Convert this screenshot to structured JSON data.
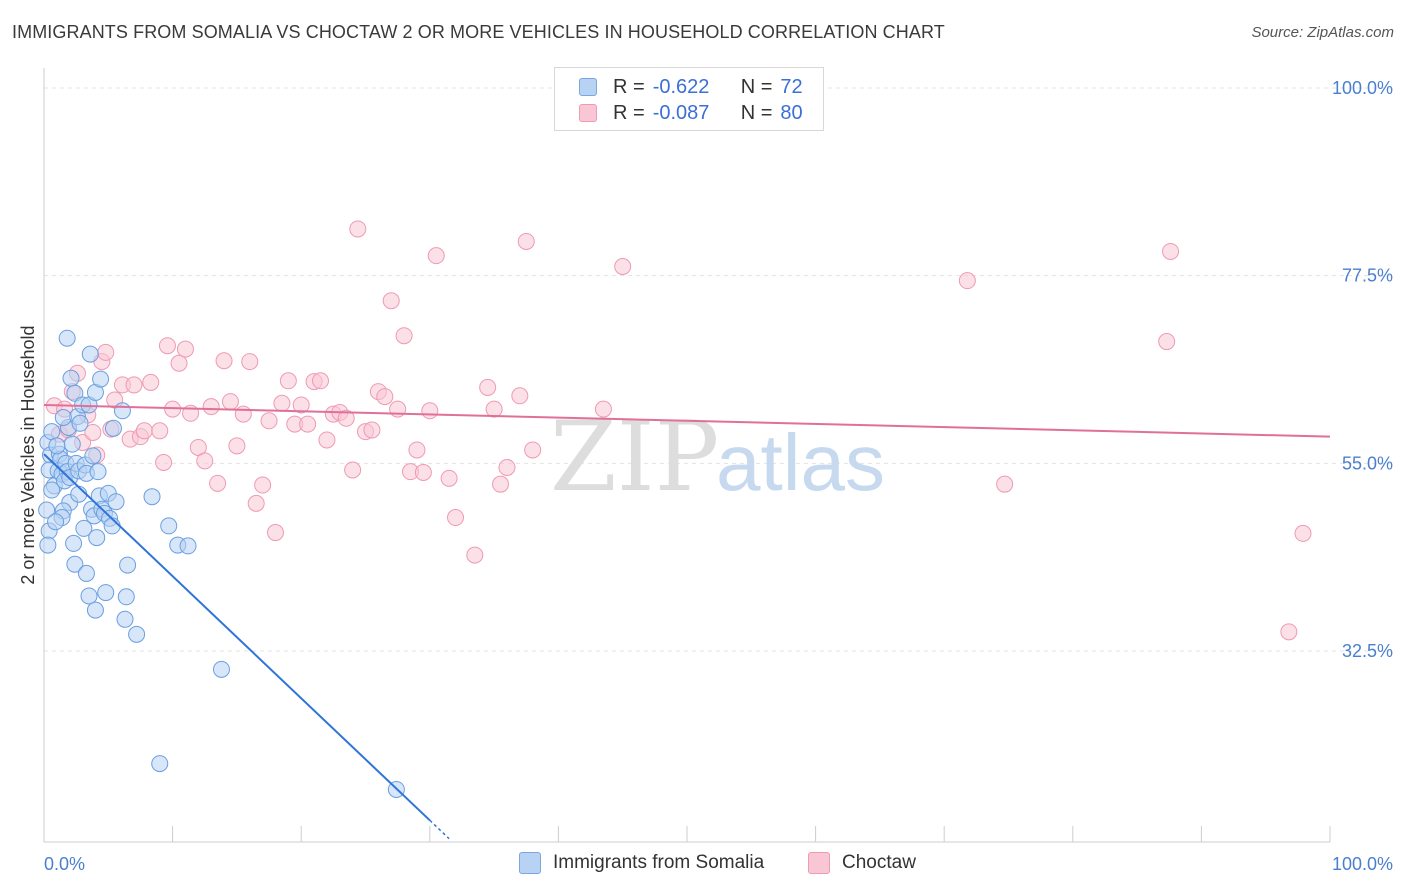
{
  "title": "IMMIGRANTS FROM SOMALIA VS CHOCTAW 2 OR MORE VEHICLES IN HOUSEHOLD CORRELATION CHART",
  "source": "Source: ZipAtlas.com",
  "watermark": {
    "zip": "ZIP",
    "atlas": "atlas"
  },
  "legend": {
    "rows": [
      {
        "r_label": "R =",
        "r_value": "-0.622",
        "n_label": "N =",
        "n_value": "72"
      },
      {
        "r_label": "R =",
        "r_value": "-0.087",
        "n_label": "N =",
        "n_value": "80"
      }
    ]
  },
  "bottom_legend": [
    "Immigrants from Somalia",
    "Choctaw"
  ],
  "colors": {
    "blue_fill": "#b7d2f3",
    "blue_stroke": "#6a9fe0",
    "blue_line": "#2f74d8",
    "pink_fill": "#f9c6d5",
    "pink_stroke": "#ee9ab3",
    "pink_line": "#e0709a",
    "tick_text": "#4a7fcf",
    "grid": "#e3e3e3"
  },
  "chart_data": {
    "type": "scatter",
    "title": "IMMIGRANTS FROM SOMALIA VS CHOCTAW 2 OR MORE VEHICLES IN HOUSEHOLD CORRELATION CHART",
    "xlabel": "",
    "ylabel": "2 or more Vehicles in Household",
    "xlim": [
      0,
      100
    ],
    "ylim": [
      10,
      100
    ],
    "x_tick_labels": [
      "0.0%",
      "100.0%"
    ],
    "y_ticks": [
      32.5,
      55.0,
      77.5,
      100.0
    ],
    "y_tick_labels": [
      "32.5%",
      "55.0%",
      "77.5%",
      "100.0%"
    ],
    "grid": true,
    "series": [
      {
        "name": "Immigrants from Somalia",
        "color": "blue",
        "R": -0.622,
        "N": 72,
        "trend": {
          "x0": 0,
          "y0": 56.1,
          "x1": 30,
          "y1": 12.2,
          "dashed_to_x": 31.5,
          "dashed_to_y": 10.0
        },
        "points": [
          [
            0.3,
            57.5
          ],
          [
            0.5,
            56.0
          ],
          [
            0.4,
            54.2
          ],
          [
            0.8,
            52.3
          ],
          [
            0.6,
            51.8
          ],
          [
            0.2,
            49.4
          ],
          [
            0.4,
            46.9
          ],
          [
            0.3,
            45.2
          ],
          [
            1.2,
            56.1
          ],
          [
            1.3,
            55.5
          ],
          [
            1.1,
            54.1
          ],
          [
            1.4,
            53.7
          ],
          [
            1.7,
            55.0
          ],
          [
            1.8,
            54.0
          ],
          [
            1.6,
            52.9
          ],
          [
            2.0,
            53.3
          ],
          [
            2.5,
            55.0
          ],
          [
            2.7,
            54.1
          ],
          [
            2.0,
            50.3
          ],
          [
            1.5,
            49.3
          ],
          [
            1.4,
            48.5
          ],
          [
            2.3,
            45.4
          ],
          [
            2.4,
            42.9
          ],
          [
            2.7,
            51.3
          ],
          [
            3.2,
            54.8
          ],
          [
            3.3,
            53.8
          ],
          [
            3.1,
            47.2
          ],
          [
            3.3,
            41.8
          ],
          [
            3.5,
            39.1
          ],
          [
            3.8,
            55.9
          ],
          [
            3.7,
            49.5
          ],
          [
            3.9,
            48.7
          ],
          [
            4.0,
            37.4
          ],
          [
            4.2,
            54.0
          ],
          [
            4.3,
            51.1
          ],
          [
            4.5,
            49.5
          ],
          [
            4.1,
            46.1
          ],
          [
            4.7,
            49.0
          ],
          [
            4.8,
            39.5
          ],
          [
            5.0,
            51.4
          ],
          [
            5.1,
            48.4
          ],
          [
            5.3,
            47.5
          ],
          [
            5.6,
            50.4
          ],
          [
            5.4,
            59.2
          ],
          [
            6.1,
            61.3
          ],
          [
            6.4,
            39.0
          ],
          [
            6.3,
            36.3
          ],
          [
            6.5,
            42.8
          ],
          [
            2.1,
            65.2
          ],
          [
            2.4,
            63.4
          ],
          [
            1.9,
            59.3
          ],
          [
            2.2,
            57.3
          ],
          [
            2.6,
            60.6
          ],
          [
            3.0,
            62.0
          ],
          [
            2.8,
            59.8
          ],
          [
            3.5,
            62.0
          ],
          [
            1.8,
            70.0
          ],
          [
            3.6,
            68.1
          ],
          [
            4.0,
            63.5
          ],
          [
            4.4,
            65.1
          ],
          [
            8.4,
            51.0
          ],
          [
            9.7,
            47.5
          ],
          [
            10.4,
            45.2
          ],
          [
            11.2,
            45.1
          ],
          [
            7.2,
            34.5
          ],
          [
            13.8,
            30.3
          ],
          [
            9.0,
            19.0
          ],
          [
            27.4,
            15.9
          ],
          [
            0.6,
            58.8
          ],
          [
            1.0,
            57.1
          ],
          [
            0.9,
            48.0
          ],
          [
            1.5,
            60.5
          ]
        ]
      },
      {
        "name": "Choctaw",
        "color": "pink",
        "R": -0.087,
        "N": 80,
        "trend": {
          "x0": 0,
          "y0": 62.0,
          "x1": 100,
          "y1": 58.2
        },
        "points": [
          [
            0.8,
            61.9
          ],
          [
            1.2,
            58.5
          ],
          [
            1.6,
            61.5
          ],
          [
            1.9,
            59.0
          ],
          [
            2.2,
            63.6
          ],
          [
            2.6,
            65.8
          ],
          [
            3.0,
            57.5
          ],
          [
            3.4,
            60.8
          ],
          [
            3.8,
            58.7
          ],
          [
            4.1,
            56.0
          ],
          [
            4.5,
            67.2
          ],
          [
            4.8,
            68.3
          ],
          [
            5.2,
            59.1
          ],
          [
            5.5,
            62.6
          ],
          [
            6.1,
            64.4
          ],
          [
            6.7,
            57.9
          ],
          [
            7.0,
            64.4
          ],
          [
            7.5,
            58.2
          ],
          [
            7.8,
            58.9
          ],
          [
            8.3,
            64.7
          ],
          [
            9.0,
            58.9
          ],
          [
            9.3,
            55.1
          ],
          [
            9.6,
            69.1
          ],
          [
            10.0,
            61.5
          ],
          [
            10.5,
            67.0
          ],
          [
            11.0,
            68.7
          ],
          [
            11.4,
            61.0
          ],
          [
            12.0,
            56.9
          ],
          [
            12.5,
            55.3
          ],
          [
            13.0,
            61.8
          ],
          [
            13.5,
            52.6
          ],
          [
            14.0,
            67.3
          ],
          [
            14.5,
            62.4
          ],
          [
            15.0,
            57.1
          ],
          [
            15.5,
            60.9
          ],
          [
            16.0,
            67.2
          ],
          [
            16.5,
            50.2
          ],
          [
            17.0,
            52.4
          ],
          [
            17.5,
            60.1
          ],
          [
            18.0,
            46.7
          ],
          [
            18.5,
            62.2
          ],
          [
            19.0,
            64.9
          ],
          [
            19.5,
            59.7
          ],
          [
            20.0,
            62.0
          ],
          [
            20.5,
            59.7
          ],
          [
            21.0,
            64.8
          ],
          [
            21.5,
            64.9
          ],
          [
            22.0,
            57.8
          ],
          [
            22.5,
            60.9
          ],
          [
            23.0,
            61.1
          ],
          [
            23.5,
            60.4
          ],
          [
            24.0,
            54.2
          ],
          [
            24.4,
            83.1
          ],
          [
            25.0,
            58.8
          ],
          [
            25.5,
            59.0
          ],
          [
            26.0,
            63.6
          ],
          [
            26.5,
            63.0
          ],
          [
            27.0,
            74.5
          ],
          [
            27.5,
            61.5
          ],
          [
            28.0,
            70.3
          ],
          [
            28.5,
            54.0
          ],
          [
            29.0,
            56.6
          ],
          [
            29.5,
            53.9
          ],
          [
            30.0,
            61.3
          ],
          [
            30.5,
            79.9
          ],
          [
            31.5,
            53.2
          ],
          [
            32.0,
            48.5
          ],
          [
            33.5,
            44.0
          ],
          [
            34.5,
            64.1
          ],
          [
            35.0,
            61.5
          ],
          [
            35.5,
            52.5
          ],
          [
            36.0,
            54.5
          ],
          [
            37.0,
            63.1
          ],
          [
            37.5,
            81.6
          ],
          [
            38.0,
            56.6
          ],
          [
            45.0,
            78.6
          ],
          [
            87.6,
            80.4
          ],
          [
            71.8,
            76.9
          ],
          [
            74.7,
            52.5
          ],
          [
            97.9,
            46.6
          ]
        ]
      }
    ],
    "extra_points_choctaw": [
      [
        87.3,
        69.6
      ],
      [
        96.8,
        34.8
      ],
      [
        43.5,
        61.5
      ]
    ]
  }
}
